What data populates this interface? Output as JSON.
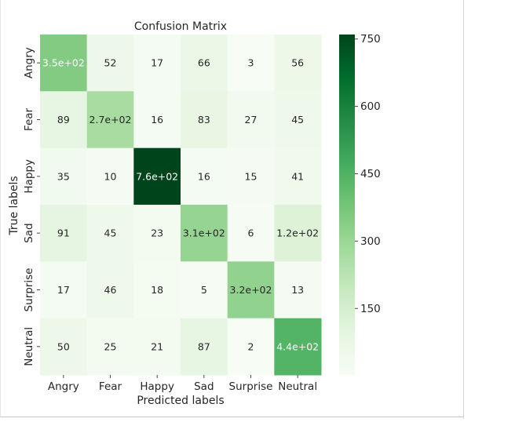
{
  "chart_data": {
    "type": "heatmap",
    "title": "Confusion Matrix",
    "xlabel": "Predicted labels",
    "ylabel": "True labels",
    "x_categories": [
      "Angry",
      "Fear",
      "Happy",
      "Sad",
      "Surprise",
      "Neutral"
    ],
    "y_categories": [
      "Angry",
      "Fear",
      "Happy",
      "Sad",
      "Surprise",
      "Neutral"
    ],
    "values": [
      [
        350,
        52,
        17,
        66,
        3,
        56
      ],
      [
        89,
        270,
        16,
        83,
        27,
        45
      ],
      [
        35,
        10,
        760,
        16,
        15,
        41
      ],
      [
        91,
        45,
        23,
        310,
        6,
        120
      ],
      [
        17,
        46,
        18,
        5,
        320,
        13
      ],
      [
        50,
        25,
        21,
        87,
        2,
        440
      ]
    ],
    "labels": [
      [
        "3.5e+02",
        "52",
        "17",
        "66",
        "3",
        "56"
      ],
      [
        "89",
        "2.7e+02",
        "16",
        "83",
        "27",
        "45"
      ],
      [
        "35",
        "10",
        "7.6e+02",
        "16",
        "15",
        "41"
      ],
      [
        "91",
        "45",
        "23",
        "3.1e+02",
        "6",
        "1.2e+02"
      ],
      [
        "17",
        "46",
        "18",
        "5",
        "3.2e+02",
        "13"
      ],
      [
        "50",
        "25",
        "21",
        "87",
        "2",
        "4.4e+02"
      ]
    ],
    "colormap": "Greens",
    "colorbar": {
      "range": [
        2,
        760
      ],
      "ticks": [
        150,
        300,
        450,
        600,
        750
      ],
      "tick_labels": [
        "150",
        "300",
        "450",
        "600",
        "750"
      ]
    },
    "colors": {
      "low": "#f7fcf5",
      "high": "#00441b",
      "text_dark": "#262626",
      "text_light": "#ffffff"
    },
    "grid": false
  }
}
